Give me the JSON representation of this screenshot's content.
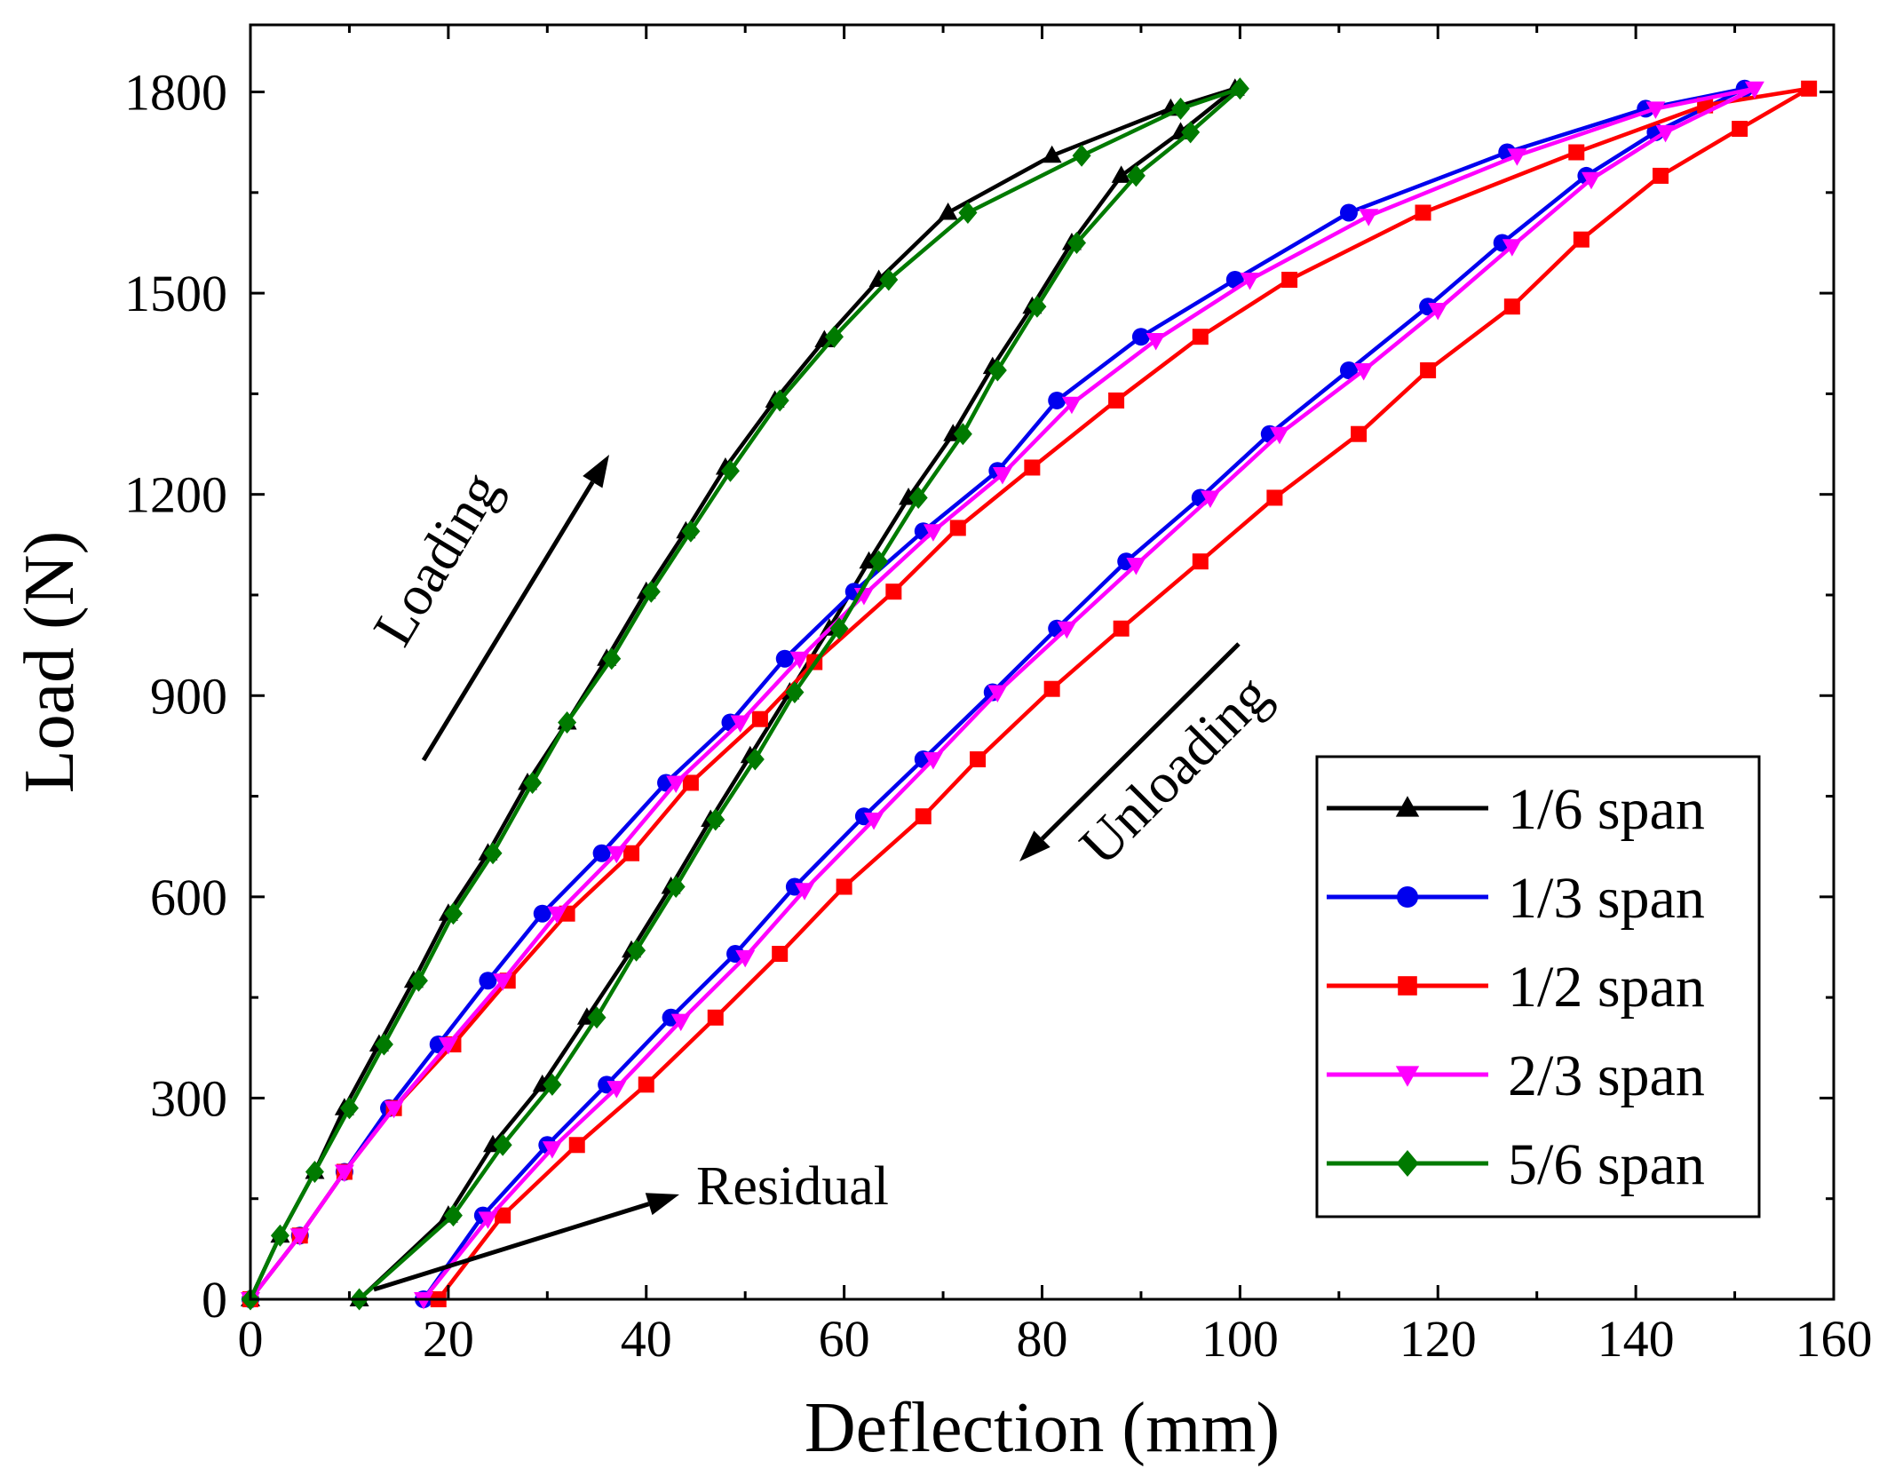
{
  "chart_data": {
    "type": "line",
    "title": "",
    "xlabel": "Deflection (mm)",
    "ylabel": "Load (N)",
    "xlim": [
      0,
      160
    ],
    "ylim": [
      0,
      1900
    ],
    "xticks": [
      0,
      20,
      40,
      60,
      80,
      100,
      120,
      140,
      160
    ],
    "yticks": [
      0,
      300,
      600,
      900,
      1200,
      1500,
      1800
    ],
    "tick_labels_x": [
      "0",
      "20",
      "40",
      "60",
      "80",
      "100",
      "120",
      "140",
      "160"
    ],
    "tick_labels_y": [
      "0",
      "300",
      "600",
      "900",
      "1200",
      "1500",
      "1800"
    ],
    "grid": false,
    "legend_position": "lower-right",
    "series": [
      {
        "name": "1/6 span",
        "color": "#000000",
        "marker": "triangle-up",
        "points": [
          [
            0,
            0
          ],
          [
            3,
            95
          ],
          [
            6.5,
            190
          ],
          [
            9.5,
            285
          ],
          [
            13,
            380
          ],
          [
            16.5,
            475
          ],
          [
            20,
            575
          ],
          [
            24,
            665
          ],
          [
            28,
            770
          ],
          [
            32,
            860
          ],
          [
            36,
            955
          ],
          [
            40,
            1055
          ],
          [
            44,
            1145
          ],
          [
            48,
            1240
          ],
          [
            53,
            1340
          ],
          [
            58,
            1430
          ],
          [
            63.5,
            1520
          ],
          [
            70.5,
            1620
          ],
          [
            81,
            1705
          ],
          [
            93,
            1775
          ],
          [
            99.5,
            1805
          ],
          [
            94,
            1740
          ],
          [
            88,
            1675
          ],
          [
            83,
            1575
          ],
          [
            79,
            1480
          ],
          [
            75,
            1390
          ],
          [
            71,
            1290
          ],
          [
            66.5,
            1195
          ],
          [
            62.5,
            1100
          ],
          [
            58.5,
            1000
          ],
          [
            54.5,
            905
          ],
          [
            50.5,
            810
          ],
          [
            46.5,
            715
          ],
          [
            42.5,
            615
          ],
          [
            38.5,
            520
          ],
          [
            34,
            420
          ],
          [
            29.5,
            320
          ],
          [
            24.5,
            230
          ],
          [
            20,
            125
          ],
          [
            11,
            0
          ]
        ]
      },
      {
        "name": "1/3 span",
        "color": "#0000ee",
        "marker": "circle",
        "points": [
          [
            0,
            0
          ],
          [
            5,
            95
          ],
          [
            9.5,
            190
          ],
          [
            14,
            285
          ],
          [
            19,
            380
          ],
          [
            24,
            475
          ],
          [
            29.5,
            575
          ],
          [
            35.5,
            665
          ],
          [
            42,
            770
          ],
          [
            48.5,
            860
          ],
          [
            54,
            955
          ],
          [
            61,
            1055
          ],
          [
            68,
            1145
          ],
          [
            75.5,
            1235
          ],
          [
            81.5,
            1340
          ],
          [
            90,
            1435
          ],
          [
            99.5,
            1520
          ],
          [
            111,
            1620
          ],
          [
            127,
            1710
          ],
          [
            141,
            1775
          ],
          [
            151,
            1805
          ],
          [
            142,
            1740
          ],
          [
            135,
            1675
          ],
          [
            126.5,
            1575
          ],
          [
            119,
            1480
          ],
          [
            111,
            1385
          ],
          [
            103,
            1290
          ],
          [
            96,
            1195
          ],
          [
            88.5,
            1100
          ],
          [
            81.5,
            1000
          ],
          [
            75,
            905
          ],
          [
            68,
            805
          ],
          [
            62,
            720
          ],
          [
            55,
            615
          ],
          [
            49,
            515
          ],
          [
            42.5,
            420
          ],
          [
            36,
            320
          ],
          [
            30,
            230
          ],
          [
            23.5,
            125
          ],
          [
            17.5,
            0
          ]
        ]
      },
      {
        "name": "1/2 span",
        "color": "#ff0000",
        "marker": "square",
        "points": [
          [
            0,
            0
          ],
          [
            5,
            95
          ],
          [
            9.5,
            190
          ],
          [
            14.5,
            285
          ],
          [
            20.5,
            380
          ],
          [
            26,
            475
          ],
          [
            32,
            575
          ],
          [
            38.5,
            665
          ],
          [
            44.5,
            770
          ],
          [
            51.5,
            865
          ],
          [
            57,
            950
          ],
          [
            65,
            1055
          ],
          [
            71.5,
            1150
          ],
          [
            79,
            1240
          ],
          [
            87.5,
            1340
          ],
          [
            96,
            1435
          ],
          [
            105,
            1520
          ],
          [
            118.5,
            1620
          ],
          [
            134,
            1710
          ],
          [
            147,
            1780
          ],
          [
            157.5,
            1805
          ],
          [
            150.5,
            1745
          ],
          [
            142.5,
            1675
          ],
          [
            134.5,
            1580
          ],
          [
            127.5,
            1480
          ],
          [
            119,
            1385
          ],
          [
            112,
            1290
          ],
          [
            103.5,
            1195
          ],
          [
            96,
            1100
          ],
          [
            88,
            1000
          ],
          [
            81,
            910
          ],
          [
            73.5,
            805
          ],
          [
            68,
            720
          ],
          [
            60,
            615
          ],
          [
            53.5,
            515
          ],
          [
            47,
            420
          ],
          [
            40,
            320
          ],
          [
            33,
            230
          ],
          [
            25.5,
            125
          ],
          [
            19,
            0
          ]
        ]
      },
      {
        "name": "2/3 span",
        "color": "#ff00ff",
        "marker": "triangle-down",
        "points": [
          [
            0,
            0
          ],
          [
            5,
            95
          ],
          [
            9.5,
            190
          ],
          [
            14.5,
            285
          ],
          [
            20,
            380
          ],
          [
            25.5,
            475
          ],
          [
            31,
            575
          ],
          [
            37,
            665
          ],
          [
            43,
            770
          ],
          [
            49.5,
            860
          ],
          [
            55.5,
            955
          ],
          [
            62,
            1050
          ],
          [
            69,
            1145
          ],
          [
            76,
            1230
          ],
          [
            83,
            1335
          ],
          [
            91.5,
            1430
          ],
          [
            101,
            1520
          ],
          [
            113,
            1615
          ],
          [
            128,
            1705
          ],
          [
            142,
            1775
          ],
          [
            152,
            1805
          ],
          [
            143,
            1740
          ],
          [
            135.5,
            1670
          ],
          [
            127.5,
            1570
          ],
          [
            120,
            1475
          ],
          [
            112.5,
            1385
          ],
          [
            104,
            1290
          ],
          [
            97,
            1195
          ],
          [
            89.5,
            1095
          ],
          [
            82.5,
            1000
          ],
          [
            75.5,
            905
          ],
          [
            69,
            805
          ],
          [
            63,
            715
          ],
          [
            56,
            610
          ],
          [
            50,
            510
          ],
          [
            43.5,
            415
          ],
          [
            37,
            315
          ],
          [
            30.5,
            225
          ],
          [
            24,
            120
          ],
          [
            17.5,
            0
          ]
        ]
      },
      {
        "name": "5/6 span",
        "color": "#007a00",
        "marker": "diamond",
        "points": [
          [
            0,
            0
          ],
          [
            3,
            95
          ],
          [
            6.5,
            190
          ],
          [
            10,
            285
          ],
          [
            13.5,
            380
          ],
          [
            17,
            475
          ],
          [
            20.5,
            575
          ],
          [
            24.5,
            665
          ],
          [
            28.5,
            770
          ],
          [
            32,
            860
          ],
          [
            36.5,
            955
          ],
          [
            40.5,
            1055
          ],
          [
            44.5,
            1145
          ],
          [
            48.5,
            1235
          ],
          [
            53.5,
            1340
          ],
          [
            59,
            1435
          ],
          [
            64.5,
            1520
          ],
          [
            72.5,
            1620
          ],
          [
            84,
            1705
          ],
          [
            94,
            1775
          ],
          [
            100,
            1805
          ],
          [
            95,
            1740
          ],
          [
            89.5,
            1675
          ],
          [
            83.5,
            1575
          ],
          [
            79.5,
            1480
          ],
          [
            75.5,
            1385
          ],
          [
            72,
            1290
          ],
          [
            67.5,
            1195
          ],
          [
            63.5,
            1100
          ],
          [
            59.5,
            1000
          ],
          [
            55,
            905
          ],
          [
            51,
            805
          ],
          [
            47,
            715
          ],
          [
            43,
            615
          ],
          [
            39,
            520
          ],
          [
            35,
            420
          ],
          [
            30.5,
            320
          ],
          [
            25.5,
            230
          ],
          [
            20.5,
            125
          ],
          [
            11,
            0
          ]
        ]
      }
    ],
    "annotations": [
      {
        "id": "loading",
        "text": "Loading"
      },
      {
        "id": "unloading",
        "text": "Unloading"
      },
      {
        "id": "residual",
        "text": "Residual"
      }
    ]
  }
}
